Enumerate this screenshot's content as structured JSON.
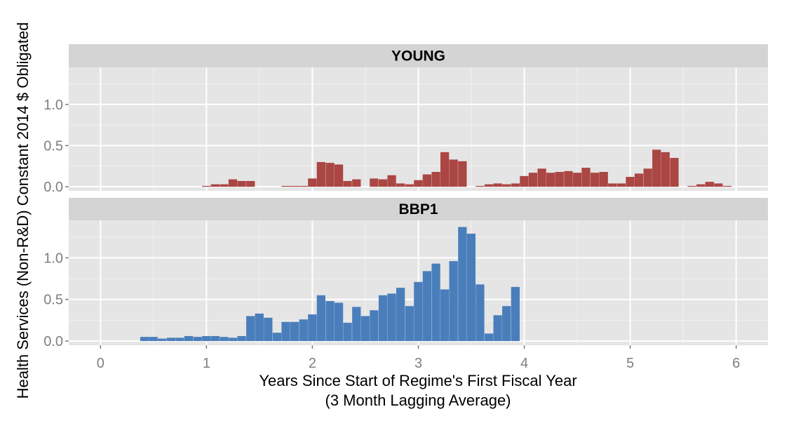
{
  "chart_data": {
    "type": "bar",
    "xlabel": "Years Since Start of Regime's First Fiscal Year",
    "xlabel_line2": "(3 Month Lagging Average)",
    "ylabel": "Health Services (Non-R&D) Constant 2014 $ Obligated",
    "xlim": [
      -0.3,
      6.3
    ],
    "x_ticks": [
      0,
      1,
      2,
      3,
      4,
      5,
      6
    ],
    "x_tick_labels": [
      "0",
      "1",
      "2",
      "3",
      "4",
      "5",
      "6"
    ],
    "ylim": [
      -0.05,
      1.45
    ],
    "y_ticks_top": [
      0.0,
      0.5,
      1.0
    ],
    "y_tick_labels_top": [
      "0.0",
      "0.5",
      "1.0"
    ],
    "y_ticks_bottom": [
      0.0,
      0.5,
      1.0
    ],
    "y_tick_labels_bottom": [
      "0.0",
      "0.5",
      "1.0"
    ],
    "grid": true,
    "legend": "none",
    "bin_width": 0.0833,
    "panels": [
      {
        "name": "YOUNG",
        "color": "#aa4643",
        "x": [
          0.958,
          1.042,
          1.125,
          1.208,
          1.292,
          1.375,
          1.708,
          1.792,
          1.875,
          1.958,
          2.042,
          2.125,
          2.208,
          2.292,
          2.375,
          2.458,
          2.542,
          2.625,
          2.708,
          2.792,
          2.875,
          2.958,
          3.042,
          3.125,
          3.208,
          3.292,
          3.375,
          3.458,
          3.542,
          3.625,
          3.708,
          3.792,
          3.875,
          3.958,
          4.042,
          4.125,
          4.208,
          4.292,
          4.375,
          4.458,
          4.542,
          4.625,
          4.708,
          4.792,
          4.875,
          4.958,
          5.042,
          5.125,
          5.208,
          5.292,
          5.375,
          5.458,
          5.542,
          5.625,
          5.708,
          5.792,
          5.875,
          5.958
        ],
        "values": [
          0.0,
          0.02,
          0.03,
          0.03,
          0.09,
          0.07,
          0.0,
          0.07,
          0.01,
          0.01,
          0.02,
          0.1,
          0.3,
          0.29,
          0.27,
          0.07,
          0.09,
          0.0,
          0.1,
          0.09,
          0.14,
          0.04,
          0.03,
          0.08,
          0.15,
          0.18,
          0.42,
          0.33,
          0.31,
          0.0,
          0.01,
          0.03,
          0.03,
          0.04,
          0.13,
          0.17,
          0.22,
          0.17,
          0.18,
          0.19,
          0.17,
          0.23,
          0.17,
          0.18,
          0.04,
          0.04,
          0.12,
          0.16,
          0.22,
          0.45,
          0.42,
          0.35,
          0.0,
          0.03,
          0.06,
          0.04,
          0.01,
          0.0
        ],
        "x_fixed": [
          1.0,
          1.083,
          1.167,
          1.25,
          1.333,
          1.417,
          1.75,
          1.833,
          1.917,
          2.0,
          2.083,
          2.167,
          2.25,
          2.333,
          2.417,
          2.5,
          2.583,
          2.667,
          2.75,
          2.833,
          2.917,
          3.0,
          3.083,
          3.167,
          3.25,
          3.333,
          3.417,
          3.5,
          3.583,
          3.667,
          3.75,
          3.833,
          3.917,
          4.0,
          4.083,
          4.167,
          4.25,
          4.333,
          4.417,
          4.5,
          4.583,
          4.667,
          4.75,
          4.833,
          4.917,
          5.0,
          5.083,
          5.167,
          5.25,
          5.333,
          5.417,
          5.5,
          5.583,
          5.667,
          5.75,
          5.833,
          5.917
        ],
        "values_fixed": [
          0.01,
          0.03,
          0.03,
          0.09,
          0.07,
          0.07,
          0.01,
          0.01,
          0.01,
          0.1,
          0.3,
          0.29,
          0.27,
          0.07,
          0.09,
          0.0,
          0.1,
          0.09,
          0.14,
          0.04,
          0.03,
          0.08,
          0.15,
          0.18,
          0.42,
          0.33,
          0.31,
          0.0,
          0.01,
          0.03,
          0.04,
          0.03,
          0.04,
          0.13,
          0.17,
          0.22,
          0.17,
          0.18,
          0.19,
          0.17,
          0.23,
          0.17,
          0.18,
          0.04,
          0.04,
          0.12,
          0.16,
          0.22,
          0.45,
          0.42,
          0.35,
          0.0,
          0.01,
          0.03,
          0.06,
          0.04,
          0.01
        ]
      },
      {
        "name": "BBP1",
        "color": "#4a7ebb",
        "x": [
          0.417,
          0.5,
          0.583,
          0.667,
          0.75,
          0.833,
          0.917,
          1.0,
          1.083,
          1.167,
          1.25,
          1.333,
          1.417,
          1.5,
          1.583,
          1.667,
          1.75,
          1.833,
          1.917,
          2.0,
          2.083,
          2.167,
          2.25,
          2.333,
          2.417,
          2.5,
          2.583,
          2.667,
          2.75,
          2.833,
          2.917,
          3.0,
          3.083,
          3.167,
          3.25,
          3.333,
          3.417,
          3.5,
          3.583,
          3.667,
          3.75,
          3.833,
          3.917
        ],
        "values": [
          0.05,
          0.05,
          0.03,
          0.04,
          0.04,
          0.06,
          0.05,
          0.06,
          0.06,
          0.05,
          0.04,
          0.06,
          0.3,
          0.33,
          0.28,
          0.1,
          0.23,
          0.23,
          0.26,
          0.32,
          0.55,
          0.48,
          0.46,
          0.22,
          0.41,
          0.3,
          0.37,
          0.55,
          0.57,
          0.64,
          0.42,
          0.71,
          0.84,
          0.93,
          0.62,
          0.96,
          1.37,
          1.29,
          0.68,
          0.09,
          0.31,
          0.42,
          0.65
        ]
      }
    ]
  }
}
